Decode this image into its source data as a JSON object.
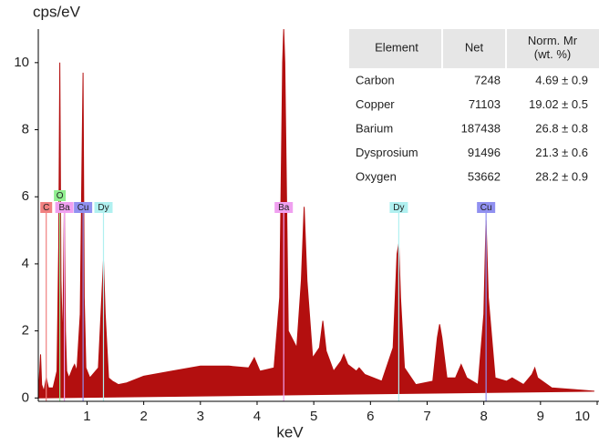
{
  "chart_data": {
    "type": "spectrum",
    "y_label": "cps/eV",
    "x_label": "keV",
    "xlim": [
      0.14,
      10
    ],
    "ylim": [
      -0.1,
      11
    ],
    "xticks": [
      1,
      2,
      3,
      4,
      5,
      6,
      7,
      8,
      9,
      10
    ],
    "yticks": [
      0,
      2,
      4,
      6,
      8,
      10
    ],
    "series": [
      {
        "color": "#b30f0f",
        "x": [
          0.14,
          0.18,
          0.2,
          0.24,
          0.28,
          0.32,
          0.4,
          0.47,
          0.5,
          0.52,
          0.54,
          0.57,
          0.6,
          0.62,
          0.64,
          0.68,
          0.75,
          0.78,
          0.82,
          0.88,
          0.91,
          0.93,
          0.95,
          0.98,
          1.05,
          1.2,
          1.26,
          1.29,
          1.32,
          1.38,
          1.45,
          1.5,
          1.55,
          1.7,
          2.0,
          2.5,
          3.0,
          3.5,
          3.85,
          3.95,
          4.05,
          4.3,
          4.4,
          4.45,
          4.47,
          4.49,
          4.55,
          4.7,
          4.78,
          4.83,
          4.88,
          4.98,
          5.1,
          5.16,
          5.22,
          5.35,
          5.48,
          5.53,
          5.6,
          5.75,
          5.8,
          5.9,
          6.2,
          6.4,
          6.47,
          6.5,
          6.53,
          6.6,
          6.8,
          7.1,
          7.18,
          7.22,
          7.26,
          7.35,
          7.5,
          7.6,
          7.7,
          7.9,
          8.0,
          8.04,
          8.08,
          8.2,
          8.4,
          8.5,
          8.7,
          8.85,
          8.9,
          8.95,
          9.2,
          9.6,
          9.95
        ],
        "values": [
          0,
          1.3,
          0.4,
          0.2,
          0.6,
          0.3,
          0.3,
          0.8,
          4.5,
          10.0,
          3.5,
          1.5,
          5.8,
          2.0,
          0.8,
          0.6,
          0.9,
          1.0,
          0.8,
          2.5,
          7.0,
          9.7,
          3.0,
          0.9,
          0.6,
          0.9,
          3.0,
          4.1,
          2.5,
          0.6,
          0.5,
          0.45,
          0.4,
          0.45,
          0.65,
          0.8,
          0.95,
          0.95,
          0.9,
          1.2,
          0.8,
          0.9,
          3.0,
          10.0,
          11.0,
          10.0,
          2.0,
          1.5,
          3.5,
          5.7,
          3.5,
          1.2,
          1.5,
          2.3,
          1.4,
          0.8,
          1.1,
          1.3,
          1.0,
          0.8,
          0.9,
          0.7,
          0.5,
          1.5,
          4.3,
          4.6,
          3.0,
          0.9,
          0.4,
          0.5,
          1.8,
          2.2,
          1.8,
          0.6,
          0.6,
          1.0,
          0.6,
          0.4,
          2.5,
          5.3,
          3.0,
          0.6,
          0.5,
          0.6,
          0.4,
          0.7,
          0.9,
          0.6,
          0.3,
          0.25,
          0.2
        ]
      }
    ],
    "markers": [
      {
        "label": "C",
        "x": 0.28,
        "color": "#f08080"
      },
      {
        "label": "O",
        "x": 0.52,
        "color": "#90ee90"
      },
      {
        "label": "Ba",
        "x": 0.6,
        "color": "#f0a0f0"
      },
      {
        "label": "Cu",
        "x": 0.93,
        "color": "#9090f0"
      },
      {
        "label": "Dy",
        "x": 1.29,
        "color": "#b0f0f0"
      },
      {
        "label": "Ba",
        "x": 4.47,
        "color": "#f0a0f0"
      },
      {
        "label": "Dy",
        "x": 6.5,
        "color": "#b0f0f0"
      },
      {
        "label": "Cu",
        "x": 8.04,
        "color": "#9090f0"
      }
    ],
    "table": {
      "columns": [
        [
          "Element"
        ],
        [
          "Net"
        ],
        [
          "Norm. Mr",
          "(wt. %)"
        ]
      ],
      "rows": [
        [
          "Carbon",
          7248,
          "4.69 ± 0.9"
        ],
        [
          "Copper",
          71103,
          "19.02 ± 0.5"
        ],
        [
          "Barium",
          187438,
          "26.8 ± 0.8"
        ],
        [
          "Dysprosium",
          91496,
          "21.3 ± 0.6"
        ],
        [
          "Oxygen",
          53662,
          "28.2 ± 0.9"
        ]
      ]
    }
  }
}
